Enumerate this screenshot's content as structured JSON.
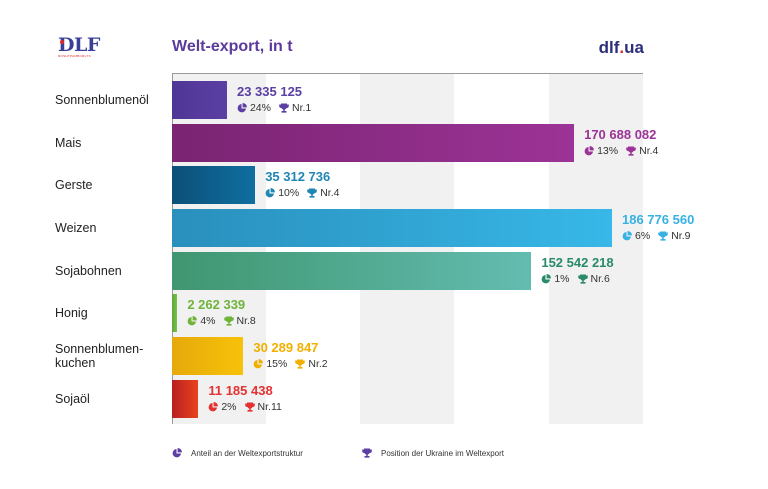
{
  "header": {
    "logo_text": "DLF",
    "logo_subtext": "ROSHTPAMBORLTS",
    "title": "Welt-export, in t",
    "site_prefix": "dlf",
    "site_dot": ".",
    "site_suffix": "ua"
  },
  "legend": {
    "share_icon": "pie-chart-icon",
    "share_label": "Anteil an der Weltexportstruktur",
    "position_icon": "trophy-icon",
    "position_label": "Position der Ukraine im Weltexport"
  },
  "chart_data": {
    "type": "bar",
    "orientation": "horizontal",
    "title": "Welt-export, in t",
    "xlabel": "",
    "ylabel": "",
    "xlim": [
      0,
      200000000
    ],
    "grid": "alternating vertical bands",
    "legend_position": "bottom",
    "categories": [
      "Sonnenblumenöl",
      "Mais",
      "Gerste",
      "Weizen",
      "Sojabohnen",
      "Honig",
      "Sonnenblumen-\nkuchen",
      "Sojaöl"
    ],
    "values": [
      23335125,
      170688082,
      35312736,
      186776560,
      152542218,
      2262339,
      30289847,
      11185438
    ],
    "value_labels": [
      "23 335 125",
      "170 688 082",
      "35 312 736",
      "186 776 560",
      "152 542 218",
      "2 262 339",
      "30 289 847",
      "11 185 438"
    ],
    "share_labels": [
      "24%",
      "13%",
      "10%",
      "6%",
      "1%",
      "4%",
      "15%",
      "2%"
    ],
    "rank_labels": [
      "Nr.1",
      "Nr.4",
      "Nr.4",
      "Nr.9",
      "Nr.6",
      "Nr.8",
      "Nr.2",
      "Nr.11"
    ],
    "colors": [
      [
        "#4f3796",
        "#5b3fa3"
      ],
      [
        "#7a2472",
        "#9c3396"
      ],
      [
        "#0b4f78",
        "#0f6fa0"
      ],
      [
        "#2a8fbc",
        "#37b8e8"
      ],
      [
        "#3f9670",
        "#63bcb0"
      ],
      [
        "#5fa83a",
        "#79c04a"
      ],
      [
        "#e6a90b",
        "#f7c20a"
      ],
      [
        "#b91f1f",
        "#e8431e"
      ]
    ],
    "label_colors": [
      "#5b3fa3",
      "#9c3396",
      "#1f86b3",
      "#37b1e3",
      "#2a8a6a",
      "#6fb33b",
      "#f1b000",
      "#e23232"
    ]
  }
}
